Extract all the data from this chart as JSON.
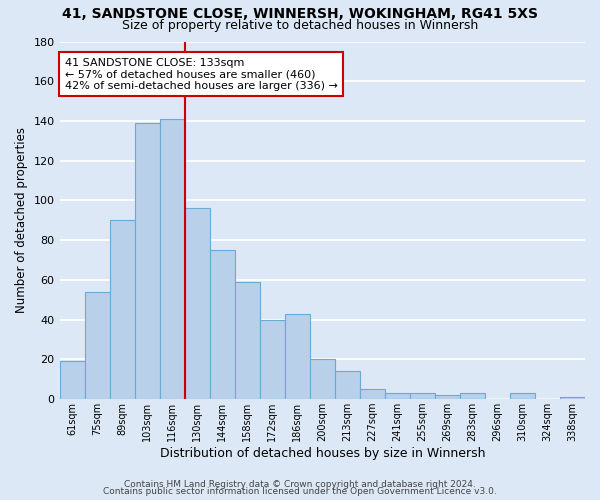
{
  "title": "41, SANDSTONE CLOSE, WINNERSH, WOKINGHAM, RG41 5XS",
  "subtitle": "Size of property relative to detached houses in Winnersh",
  "xlabel": "Distribution of detached houses by size in Winnersh",
  "ylabel": "Number of detached properties",
  "bar_labels": [
    "61sqm",
    "75sqm",
    "89sqm",
    "103sqm",
    "116sqm",
    "130sqm",
    "144sqm",
    "158sqm",
    "172sqm",
    "186sqm",
    "200sqm",
    "213sqm",
    "227sqm",
    "241sqm",
    "255sqm",
    "269sqm",
    "283sqm",
    "296sqm",
    "310sqm",
    "324sqm",
    "338sqm"
  ],
  "bar_values": [
    19,
    54,
    90,
    139,
    141,
    96,
    75,
    59,
    40,
    43,
    20,
    14,
    5,
    3,
    3,
    2,
    3,
    0,
    3,
    0,
    1
  ],
  "bar_color": "#b8d0ea",
  "bar_edgecolor": "#6aaad4",
  "background_color": "#dce8f5",
  "grid_color": "#ffffff",
  "ylim": [
    0,
    180
  ],
  "yticks": [
    0,
    20,
    40,
    60,
    80,
    100,
    120,
    140,
    160,
    180
  ],
  "vline_color": "#cc0000",
  "annotation_title": "41 SANDSTONE CLOSE: 133sqm",
  "annotation_line1": "← 57% of detached houses are smaller (460)",
  "annotation_line2": "42% of semi-detached houses are larger (336) →",
  "annotation_box_color": "#ffffff",
  "annotation_box_edgecolor": "#cc0000",
  "footer1": "Contains HM Land Registry data © Crown copyright and database right 2024.",
  "footer2": "Contains public sector information licensed under the Open Government Licence v3.0."
}
